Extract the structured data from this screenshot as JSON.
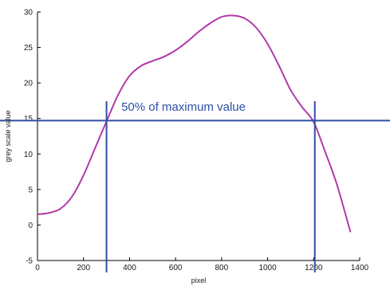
{
  "chart_data": {
    "type": "line",
    "xlabel": "pixel",
    "ylabel": "grey scale value",
    "xlim": [
      0,
      1400
    ],
    "ylim": [
      -5,
      30
    ],
    "xticks": [
      0,
      200,
      400,
      600,
      800,
      1000,
      1200,
      1400
    ],
    "yticks": [
      -5,
      0,
      5,
      10,
      15,
      20,
      25,
      30
    ],
    "grid": false,
    "series": [
      {
        "color": "#b23aa8",
        "x": [
          0,
          50,
          100,
          150,
          200,
          250,
          300,
          350,
          400,
          450,
          500,
          550,
          600,
          650,
          700,
          750,
          800,
          850,
          900,
          950,
          1000,
          1050,
          1100,
          1150,
          1200,
          1250,
          1300,
          1360
        ],
        "y": [
          1.5,
          1.7,
          2.3,
          4.0,
          7.0,
          10.8,
          14.6,
          18.3,
          21.0,
          22.4,
          23.1,
          23.7,
          24.6,
          25.8,
          27.2,
          28.4,
          29.3,
          29.5,
          29.1,
          27.8,
          25.5,
          22.4,
          19.0,
          16.6,
          14.5,
          10.3,
          5.8,
          -1.0
        ]
      }
    ],
    "threshold": {
      "y": 14.7,
      "color": "#2e4fa3"
    },
    "markers": {
      "x": [
        300,
        1205
      ],
      "color": "#2e4fa3"
    },
    "annotations": [
      {
        "text": "50% of maximum value",
        "x": 610,
        "y": 16.0,
        "color": "#2e4fa3"
      }
    ]
  }
}
